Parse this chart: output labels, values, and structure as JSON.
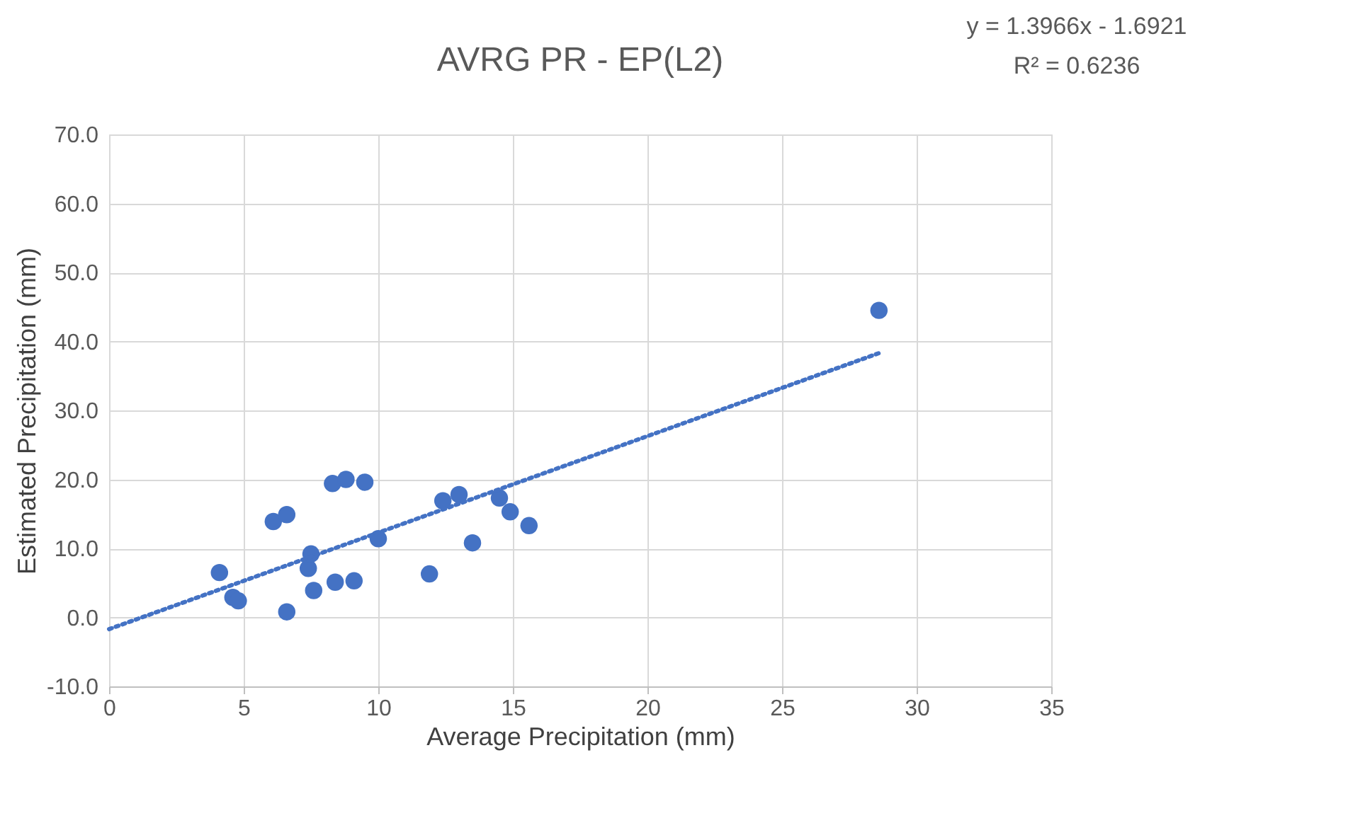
{
  "chart_data": {
    "type": "scatter",
    "title": "AVRG PR - EP(L2)",
    "xlabel": "Average Precipitation (mm)",
    "ylabel": "Estimated Precipitation (mm)",
    "annotations": [
      "y = 1.3966x - 1.6921",
      "R² = 0.6236"
    ],
    "xlim": [
      0,
      35
    ],
    "xticks": [
      0,
      5,
      10,
      15,
      20,
      25,
      30,
      35
    ],
    "ylim": [
      -10,
      70
    ],
    "yticks": [
      {
        "value": -10,
        "label": "-10.0"
      },
      {
        "value": 0,
        "label": "0.0"
      },
      {
        "value": 10,
        "label": "10.0"
      },
      {
        "value": 20,
        "label": "20.0"
      },
      {
        "value": 30,
        "label": "30.0"
      },
      {
        "value": 40,
        "label": "40.0"
      },
      {
        "value": 50,
        "label": "50.0"
      },
      {
        "value": 60,
        "label": "60.0"
      },
      {
        "value": 70,
        "label": "70.0"
      }
    ],
    "grid": true,
    "marker": "circle",
    "series": [
      {
        "color": "#4472c4",
        "x": [
          4.1,
          4.6,
          4.8,
          6.1,
          6.6,
          6.6,
          7.4,
          7.5,
          7.6,
          8.3,
          8.8,
          9.5,
          8.4,
          9.1,
          10.0,
          11.9,
          12.4,
          13.0,
          13.5,
          14.5,
          14.9,
          15.6,
          28.6
        ],
        "values": [
          6.5,
          2.9,
          2.4,
          13.9,
          14.9,
          0.8,
          7.1,
          9.2,
          3.9,
          19.4,
          20.0,
          19.6,
          5.1,
          5.3,
          11.4,
          6.3,
          16.9,
          17.8,
          10.8,
          17.3,
          15.3,
          13.3,
          44.5
        ]
      },
      {
        "type": "line",
        "color": "#4472c4",
        "line_style": "dotted",
        "marker": "none",
        "x": [
          0,
          28.6
        ],
        "values": [
          -1.7,
          38.3
        ]
      }
    ]
  }
}
